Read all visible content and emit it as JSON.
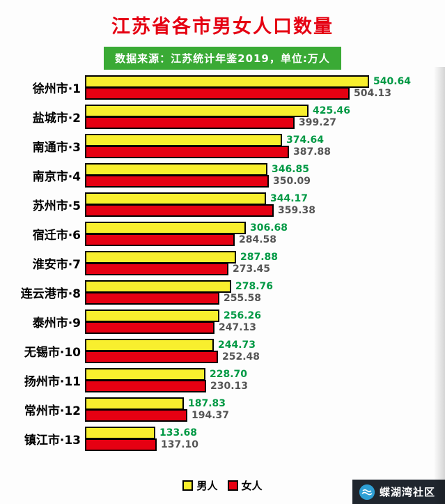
{
  "title": "江苏省各市男女人口数量",
  "subtitle": "数据来源：江苏统计年鉴2019，单位:万人",
  "legend": {
    "men": "男人",
    "women": "女人"
  },
  "watermark": "蝶湖湾社区",
  "colors": {
    "title": "#e50012",
    "banner": "#3aaa35",
    "men_bar": "#f8ef2e",
    "women_bar": "#e60012",
    "men_value_label": "#009944",
    "women_value_label": "#555555"
  },
  "chart_data": {
    "type": "bar",
    "orientation": "horizontal",
    "title": "江苏省各市男女人口数量",
    "source_note": "数据来源：江苏统计年鉴2019，单位:万人",
    "unit": "万人",
    "categories": [
      "徐州市·1",
      "盐城市·2",
      "南通市·3",
      "南京市·4",
      "苏州市·5",
      "宿迁市·6",
      "淮安市·7",
      "连云港市·8",
      "泰州市·9",
      "无锡市·10",
      "扬州市·11",
      "常州市·12",
      "镇江市·13"
    ],
    "series": [
      {
        "name": "男人",
        "values": [
          540.64,
          425.46,
          374.64,
          346.85,
          344.17,
          306.68,
          287.88,
          278.76,
          256.26,
          244.73,
          228.7,
          187.83,
          133.68
        ]
      },
      {
        "name": "女人",
        "values": [
          504.13,
          399.27,
          387.88,
          350.09,
          359.38,
          284.58,
          273.45,
          255.58,
          247.13,
          252.48,
          230.13,
          194.37,
          137.1
        ]
      }
    ],
    "xlim": [
      0,
      560
    ],
    "legend_position": "bottom",
    "grid": false
  }
}
